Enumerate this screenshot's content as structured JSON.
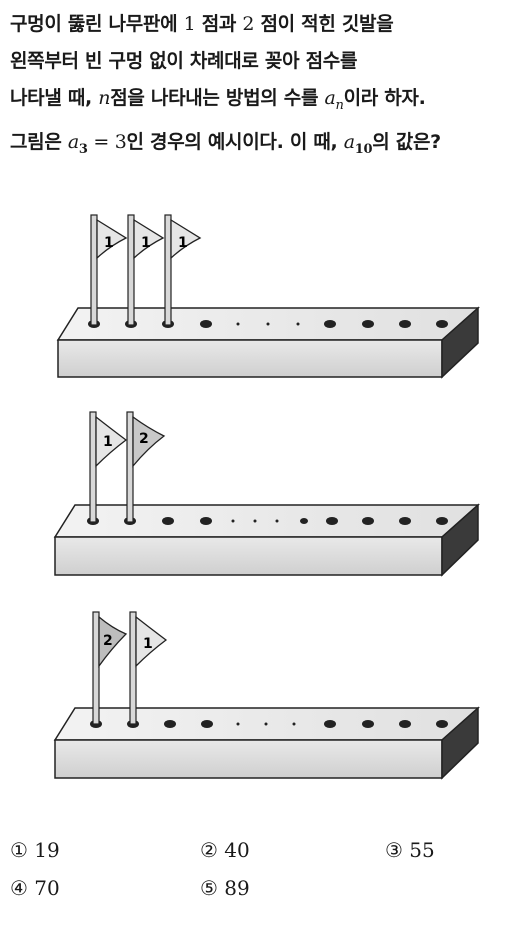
{
  "problem": {
    "line1": {
      "a": "구멍이 뚫린 나무판에 ",
      "b": "1",
      "c": " 점과 ",
      "d": "2",
      "e": " 점이 적힌 깃발을"
    },
    "line2": "왼쪽부터 빈 구멍 없이 차례대로 꽂아 점수를",
    "line3": {
      "a": "나타낼 때, ",
      "n": "n",
      "b": "점을 나타내는 방법의 수를 ",
      "an": "a",
      "an_sub": "n",
      "c": "이라 하자."
    },
    "line4": {
      "a": "그림은 ",
      "a3": "a",
      "a3_sub": "3",
      "eq": " = 3",
      "b": "인 경우의 예시이다. 이 때, ",
      "a10": "a",
      "a10_sub": "10",
      "c": "의 값은?"
    }
  },
  "figures": [
    {
      "flags": [
        "1",
        "1",
        "1"
      ]
    },
    {
      "flags": [
        "1",
        "2"
      ]
    },
    {
      "flags": [
        "2",
        "1"
      ]
    }
  ],
  "choices": [
    {
      "marker": "①",
      "value": "19"
    },
    {
      "marker": "②",
      "value": "40"
    },
    {
      "marker": "③",
      "value": "55"
    },
    {
      "marker": "④",
      "value": "70"
    },
    {
      "marker": "⑤",
      "value": "89"
    }
  ]
}
